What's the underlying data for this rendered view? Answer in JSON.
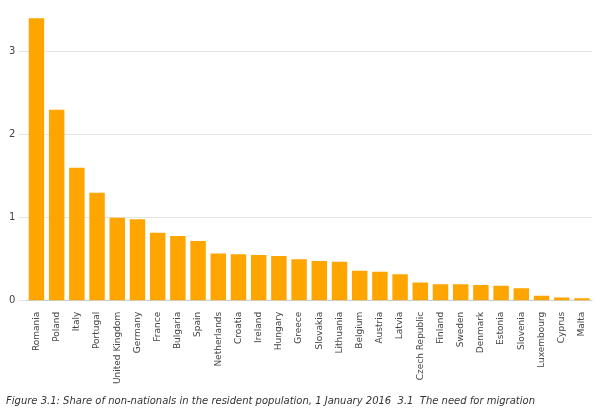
{
  "chart_data": {
    "type": "bar",
    "categories": [
      "Romania",
      "Poland",
      "Italy",
      "Portugal",
      "United Kingdom",
      "Germany",
      "France",
      "Bulgaria",
      "Spain",
      "Netherlands",
      "Croatia",
      "Ireland",
      "Hungary",
      "Greece",
      "Slovakia",
      "Lithuania",
      "Belgium",
      "Austria",
      "Latvia",
      "Czech Republic",
      "Finland",
      "Sweden",
      "Denmark",
      "Estonia",
      "Slovenia",
      "Luxembourg",
      "Cyprus",
      "Malta"
    ],
    "values": [
      3.4,
      2.3,
      1.6,
      1.3,
      1.0,
      0.98,
      0.82,
      0.78,
      0.72,
      0.57,
      0.56,
      0.55,
      0.54,
      0.5,
      0.48,
      0.47,
      0.36,
      0.35,
      0.32,
      0.22,
      0.2,
      0.2,
      0.19,
      0.18,
      0.15,
      0.06,
      0.04,
      0.03
    ],
    "color": "#FFA500",
    "ylim": [
      0,
      3.5
    ],
    "yticks": [
      0,
      1,
      2,
      3
    ],
    "grid": true,
    "annotations": [
      "Figure 3.1: Share of non-nationals in the resident population, 1 January 2016  3.1  The need for migration"
    ]
  }
}
